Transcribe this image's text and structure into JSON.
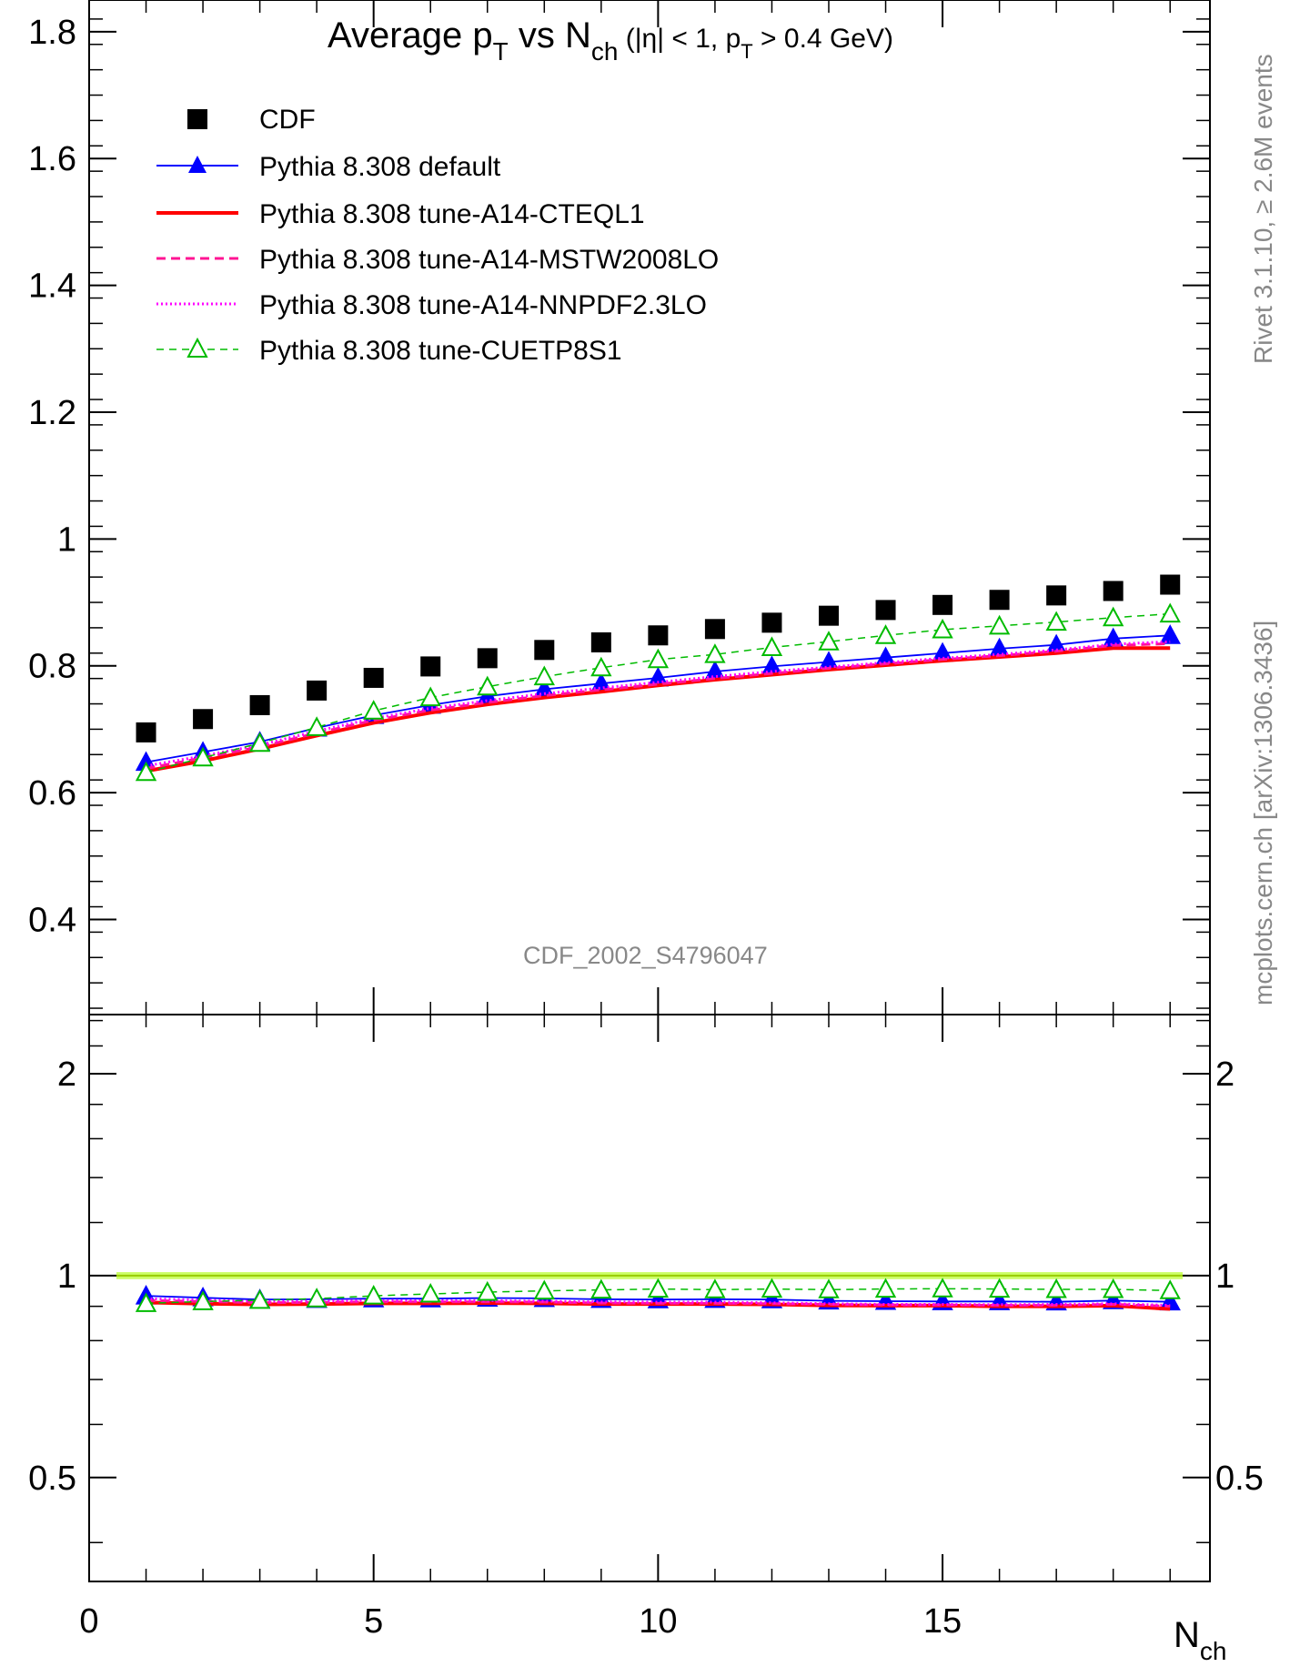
{
  "title": {
    "prefix": "Average p",
    "prefix_sub": "T",
    "mid": " vs N",
    "mid_sub": "ch",
    "cond_a": " (|η| < 1, p",
    "cond_sub": "T",
    "cond_b": " > 0.4 GeV)"
  },
  "analysis_label": "CDF_2002_S4796047",
  "side_label": "mcplots.cern.ch [arXiv:1306.3436]",
  "rivet_label": "Rivet 3.1.10, ≥ 2.6M events",
  "xlabel": {
    "main": "N",
    "sub": "ch"
  },
  "colors": {
    "data": "#000000",
    "default": "#0000ff",
    "a14_cteql1": "#ff0000",
    "a14_mstw": "#ff1493",
    "a14_nnpdf": "#ff00ff",
    "cuetp8s1": "#00bb00",
    "band": "#ccff66",
    "ratio_line": "#99cc00",
    "label_gray": "#888888"
  },
  "chart_data": [
    {
      "type": "line",
      "panel": "main",
      "xlim": [
        0,
        19.7
      ],
      "ylim": [
        0.25,
        1.85
      ],
      "yticks": [
        0.4,
        0.6,
        0.8,
        1,
        1.2,
        1.4,
        1.6,
        1.8
      ],
      "ytick_labels": [
        "0.4",
        "0.6",
        "0.8",
        "1",
        "1.2",
        "1.4",
        "1.6",
        "1.8"
      ],
      "x": [
        1,
        2,
        3,
        4,
        5,
        6,
        7,
        8,
        9,
        10,
        11,
        12,
        13,
        14,
        15,
        16,
        17,
        18,
        19
      ],
      "series": [
        {
          "name": "CDF",
          "key": "data",
          "style": "square",
          "values": [
            0.695,
            0.716,
            0.738,
            0.761,
            0.781,
            0.799,
            0.812,
            0.825,
            0.837,
            0.848,
            0.858,
            0.868,
            0.879,
            0.888,
            0.896,
            0.904,
            0.911,
            0.918,
            0.928
          ]
        },
        {
          "name": "Pythia 8.308 default",
          "key": "default",
          "style": "solid-thin",
          "marker": "triangle-filled",
          "values": [
            0.648,
            0.664,
            0.68,
            0.702,
            0.722,
            0.738,
            0.752,
            0.763,
            0.772,
            0.781,
            0.791,
            0.799,
            0.806,
            0.813,
            0.82,
            0.827,
            0.833,
            0.843,
            0.848
          ]
        },
        {
          "name": "Pythia 8.308 tune-A14-CTEQL1",
          "key": "a14_cteql1",
          "style": "solid-thick",
          "values": [
            0.634,
            0.65,
            0.669,
            0.69,
            0.71,
            0.726,
            0.739,
            0.75,
            0.759,
            0.769,
            0.778,
            0.786,
            0.794,
            0.801,
            0.808,
            0.814,
            0.82,
            0.828,
            0.828
          ]
        },
        {
          "name": "Pythia 8.308 tune-A14-MSTW2008LO",
          "key": "a14_mstw",
          "style": "dashed",
          "values": [
            0.638,
            0.655,
            0.672,
            0.694,
            0.714,
            0.73,
            0.742,
            0.753,
            0.762,
            0.771,
            0.78,
            0.788,
            0.796,
            0.803,
            0.81,
            0.816,
            0.823,
            0.832,
            0.835
          ]
        },
        {
          "name": "Pythia 8.308 tune-A14-NNPDF2.3LO",
          "key": "a14_nnpdf",
          "style": "dotted",
          "values": [
            0.642,
            0.658,
            0.675,
            0.697,
            0.717,
            0.733,
            0.745,
            0.756,
            0.765,
            0.774,
            0.783,
            0.791,
            0.798,
            0.805,
            0.812,
            0.818,
            0.825,
            0.834,
            0.838
          ]
        },
        {
          "name": "Pythia 8.308 tune-CUETP8S1",
          "key": "cuetp8s1",
          "style": "dashed-thin",
          "marker": "triangle-open",
          "values": [
            0.632,
            0.655,
            0.678,
            0.703,
            0.729,
            0.75,
            0.767,
            0.783,
            0.797,
            0.81,
            0.818,
            0.829,
            0.838,
            0.848,
            0.857,
            0.863,
            0.869,
            0.876,
            0.882
          ]
        }
      ]
    },
    {
      "type": "line",
      "panel": "ratio",
      "xlim": [
        0,
        19.7
      ],
      "ylim": [
        0.35,
        2.45
      ],
      "ylog": true,
      "yticks": [
        0.5,
        1,
        2
      ],
      "ytick_labels": [
        "0.5",
        "1",
        "2"
      ],
      "xticks": [
        0,
        5,
        10,
        15
      ],
      "xtick_labels": [
        "0",
        "5",
        "10",
        "15"
      ],
      "x": [
        1,
        2,
        3,
        4,
        5,
        6,
        7,
        8,
        9,
        10,
        11,
        12,
        13,
        14,
        15,
        16,
        17,
        18,
        19
      ],
      "series": [
        {
          "key": "default",
          "values": [
            0.933,
            0.927,
            0.921,
            0.922,
            0.924,
            0.924,
            0.926,
            0.925,
            0.922,
            0.921,
            0.922,
            0.921,
            0.917,
            0.916,
            0.915,
            0.915,
            0.914,
            0.918,
            0.914
          ]
        },
        {
          "key": "a14_cteql1",
          "values": [
            0.912,
            0.908,
            0.906,
            0.907,
            0.909,
            0.909,
            0.91,
            0.909,
            0.907,
            0.907,
            0.907,
            0.906,
            0.903,
            0.902,
            0.902,
            0.9,
            0.9,
            0.902,
            0.892
          ]
        },
        {
          "key": "a14_mstw",
          "values": [
            0.918,
            0.915,
            0.911,
            0.912,
            0.914,
            0.914,
            0.914,
            0.913,
            0.91,
            0.909,
            0.909,
            0.908,
            0.906,
            0.904,
            0.904,
            0.903,
            0.903,
            0.906,
            0.9
          ]
        },
        {
          "key": "a14_nnpdf",
          "values": [
            0.924,
            0.919,
            0.915,
            0.916,
            0.918,
            0.917,
            0.918,
            0.916,
            0.914,
            0.913,
            0.913,
            0.911,
            0.908,
            0.906,
            0.906,
            0.905,
            0.906,
            0.908,
            0.903
          ]
        },
        {
          "key": "cuetp8s1",
          "values": [
            0.909,
            0.915,
            0.919,
            0.924,
            0.933,
            0.939,
            0.945,
            0.949,
            0.952,
            0.955,
            0.953,
            0.955,
            0.953,
            0.955,
            0.956,
            0.955,
            0.954,
            0.954,
            0.95
          ]
        }
      ]
    }
  ]
}
